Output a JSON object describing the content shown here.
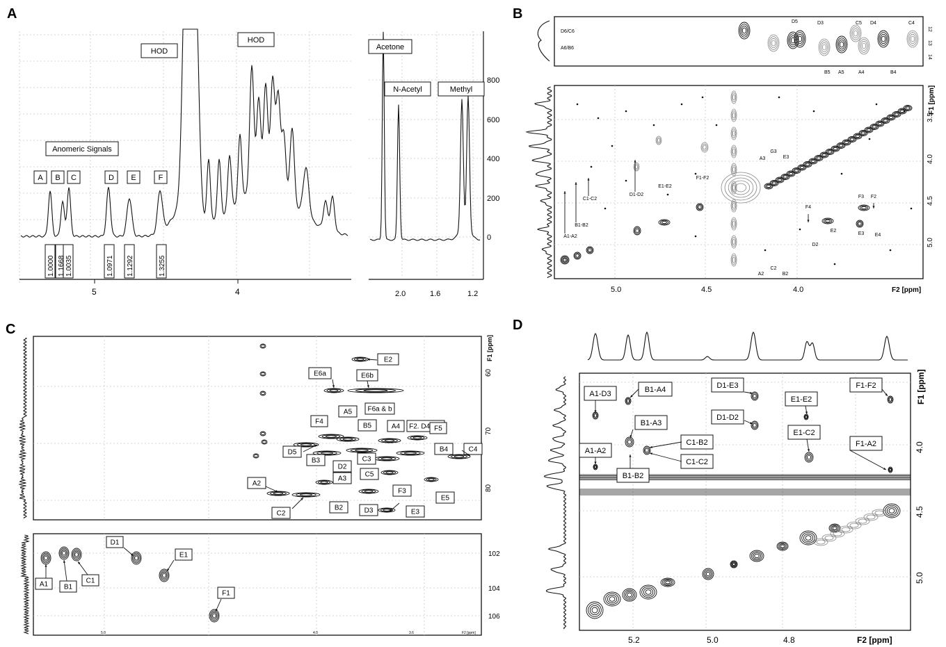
{
  "panels": {
    "A": {
      "letter": "A",
      "left": {
        "labels": [
          "Anomeric Signals",
          "HOD",
          "HOD"
        ],
        "peaks": [
          "A",
          "B",
          "C",
          "D",
          "E",
          "F"
        ],
        "integrals": [
          "1.0000",
          "1.1668",
          "1.0035",
          "1.0971",
          "1.1292",
          "1.3255"
        ],
        "xticks": [
          "5",
          "4"
        ]
      },
      "right": {
        "labels": [
          "Acetone",
          "N-Acetyl",
          "Methyl"
        ],
        "xticks": [
          "2.0",
          "1.6",
          "1.2"
        ],
        "yticks": [
          "800",
          "600",
          "400",
          "200",
          "0"
        ]
      }
    },
    "B": {
      "letter": "B",
      "top": {
        "rowlabels": [
          "D6/C6",
          "A6/B6"
        ],
        "toplabels": [
          "D5",
          "D3",
          "C5",
          "D4",
          "C4"
        ],
        "bottomlabels": [
          "B5",
          "A5",
          "A4",
          "B4"
        ],
        "yticks": [
          "12",
          "13",
          "14"
        ]
      },
      "main": {
        "labels": [
          "A1-A2",
          "B1-B2",
          "C1-C2",
          "D1-D2",
          "E1-E2",
          "F1-F2",
          "A3",
          "G3",
          "E3",
          "F4",
          "D2",
          "E2",
          "F3",
          "F2",
          "E3",
          "E4",
          "A2",
          "C2",
          "B2"
        ],
        "xticks": [
          "5.0",
          "4.5",
          "4.0"
        ],
        "yticks": [
          "3.5",
          "4.0",
          "4.5",
          "5.0"
        ],
        "xlabel": "F2 [ppm]",
        "ylabel": "F1 [ppm]"
      }
    },
    "C": {
      "letter": "C",
      "main": {
        "labels": [
          "E2",
          "E6a",
          "E6b",
          "F6a & b",
          "F2. D4. E4",
          "F4",
          "A5",
          "B5",
          "A4",
          "F5",
          "D5",
          "B3",
          "D2",
          "C3",
          "B4",
          "C4",
          "C5",
          "A3",
          "A2",
          "F3",
          "E5",
          "C2",
          "B2",
          "D3",
          "E3"
        ],
        "yticks": [
          "60",
          "70",
          "80"
        ],
        "ylabel": "F1 [ppm]"
      },
      "bottom": {
        "labels": [
          "D1",
          "E1",
          "A1",
          "B1",
          "C1",
          "F1"
        ],
        "yticks": [
          "102",
          "104",
          "106"
        ],
        "xticks": [
          "5.0",
          "4.0",
          "3.6"
        ],
        "xlabel": "F2 [ppm]"
      }
    },
    "D": {
      "letter": "D",
      "main": {
        "labels": [
          "A1-D3",
          "B1-A4",
          "D1-E3",
          "E1-E2",
          "F1-F2",
          "D1-D2",
          "B1-A3",
          "C1-B2",
          "E1-C2",
          "A1-A2",
          "C1-C2",
          "F1-A2",
          "B1-B2"
        ],
        "xticks": [
          "5.2",
          "5.0",
          "4.8"
        ],
        "yticks": [
          "4.0",
          "4.5",
          "5.0"
        ],
        "xlabel": "F2 [ppm]",
        "ylabel": "F1 [ppm]"
      }
    }
  },
  "chart_data": [
    {
      "type": "line",
      "panel": "A-left",
      "title": "",
      "xlabel": "",
      "ylabel": "",
      "xlim": [
        5.5,
        3.5
      ],
      "xticks": [
        5,
        4
      ],
      "series": [
        {
          "x": [
            5.38,
            5.3,
            5.22,
            5.17,
            5.12,
            4.98,
            4.88,
            4.77,
            4.67,
            4.57,
            4.47,
            4.38,
            4.28,
            4.22,
            4.12,
            4.05,
            3.97,
            3.92,
            3.85,
            3.78,
            3.72,
            3.68,
            3.62,
            3.55
          ],
          "values": [
            20,
            22,
            38,
            35,
            42,
            18,
            52,
            36,
            32,
            45,
            90,
            300,
            120,
            100,
            95,
            80,
            170,
            150,
            155,
            120,
            140,
            80,
            25,
            15
          ]
        }
      ]
    },
    {
      "type": "line",
      "panel": "A-right",
      "title": "",
      "xlabel": "",
      "ylabel": "",
      "xlim": [
        2.25,
        1.0
      ],
      "ylim": [
        -50,
        950
      ],
      "xticks": [
        2.0,
        1.6,
        1.2
      ],
      "series": [
        {
          "x": [
            2.22,
            2.2,
            2.17,
            2.1,
            2.05,
            2.02,
            1.98,
            1.9,
            1.6,
            1.4,
            1.33,
            1.3,
            1.27,
            1.23,
            1.2,
            1.16,
            1.1,
            1.05
          ],
          "values": [
            30,
            950,
            40,
            20,
            40,
            680,
            30,
            15,
            5,
            20,
            60,
            650,
            120,
            680,
            60,
            20,
            5,
            0
          ]
        }
      ]
    },
    {
      "type": "scatter",
      "panel": "C-bottom",
      "title": "",
      "xlabel": "F2 [ppm]",
      "ylabel": "",
      "ylim": [
        101,
        107
      ],
      "series": [
        {
          "x": [
            5.28,
            5.22,
            5.16,
            4.96,
            4.83,
            4.62
          ],
          "values": [
            102.3,
            102.1,
            102.2,
            102.4,
            103.5,
            105.8
          ]
        }
      ]
    }
  ]
}
